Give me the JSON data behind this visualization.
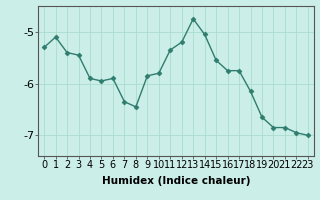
{
  "x": [
    0,
    1,
    2,
    3,
    4,
    5,
    6,
    7,
    8,
    9,
    10,
    11,
    12,
    13,
    14,
    15,
    16,
    17,
    18,
    19,
    20,
    21,
    22,
    23
  ],
  "y": [
    -5.3,
    -5.1,
    -5.4,
    -5.45,
    -5.9,
    -5.95,
    -5.9,
    -6.35,
    -6.45,
    -5.85,
    -5.8,
    -5.35,
    -5.2,
    -4.75,
    -5.05,
    -5.55,
    -5.75,
    -5.75,
    -6.15,
    -6.65,
    -6.85,
    -6.85,
    -6.95,
    -7.0
  ],
  "line_color": "#2e7d6e",
  "marker": "D",
  "marker_size": 2.5,
  "bg_color": "#cceee8",
  "grid_color": "#aaddcc",
  "xlabel": "Humidex (Indice chaleur)",
  "yticks": [
    -7,
    -6,
    -5
  ],
  "xlim": [
    -0.5,
    23.5
  ],
  "ylim": [
    -7.4,
    -4.5
  ],
  "xlabel_fontsize": 7.5,
  "tick_fontsize": 7,
  "line_width": 1.0
}
